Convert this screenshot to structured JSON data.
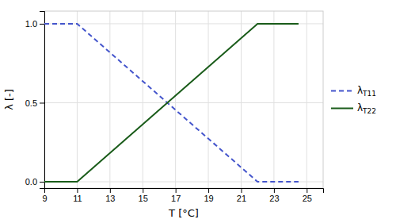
{
  "chart_data": {
    "type": "line",
    "xlabel": "T [°C]",
    "ylabel": "λ [-]",
    "x": [
      9,
      11,
      22,
      24.5
    ],
    "series": [
      {
        "name": "λT11",
        "color": "#4455cc",
        "line_style": "dashed",
        "values": [
          1,
          1,
          0,
          0
        ]
      },
      {
        "name": "λT22",
        "color": "#1a5c1a",
        "line_style": "solid",
        "values": [
          0,
          0,
          1,
          1
        ]
      }
    ],
    "xlim": [
      9,
      26
    ],
    "ylim": [
      -0.04,
      1.08
    ],
    "xticks": [
      9,
      11,
      13,
      15,
      17,
      19,
      21,
      23,
      25
    ],
    "yticks": [
      {
        "value": 0,
        "label": "0.0"
      },
      0.5,
      {
        "value": 1,
        "label": "1.0"
      }
    ],
    "grid": true,
    "legend": "right"
  }
}
